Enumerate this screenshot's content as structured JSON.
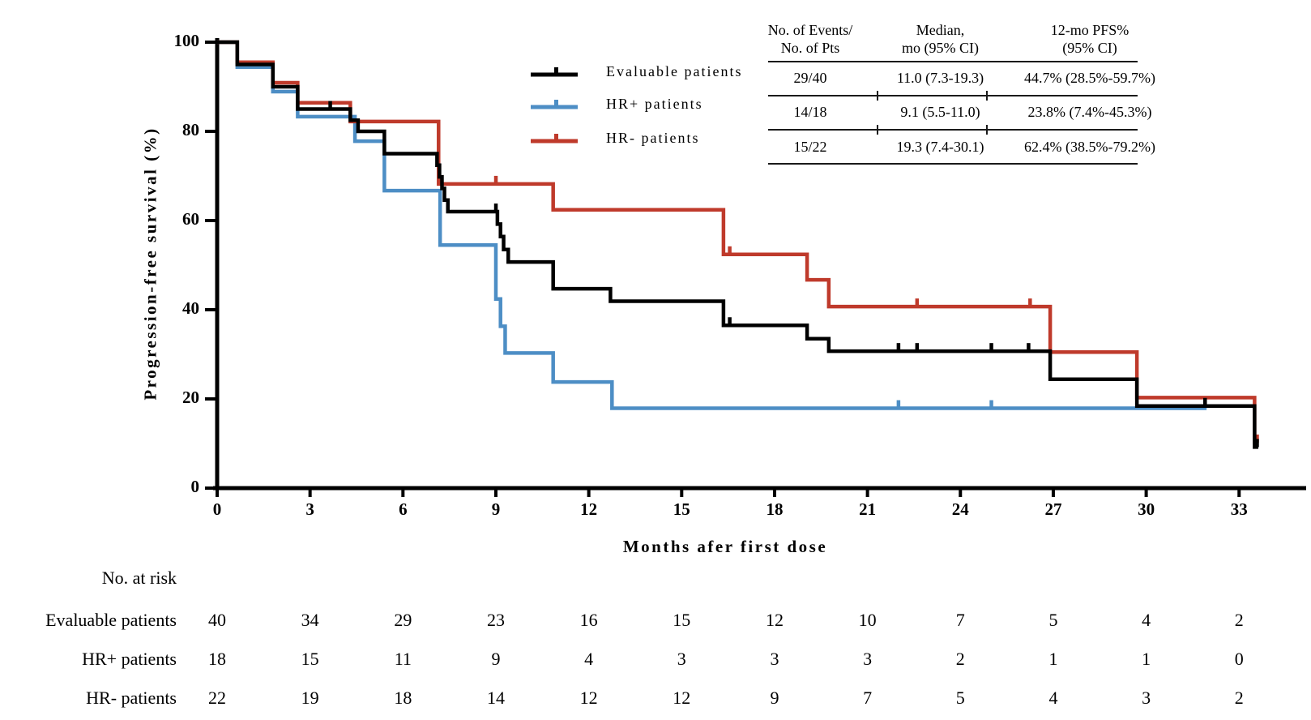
{
  "chart_data": {
    "type": "line",
    "subtype": "kaplan-meier-step",
    "title": "",
    "xlabel": "Months afer first dose",
    "ylabel": "Progression-free survival (%)",
    "xlim": [
      0,
      35.2
    ],
    "ylim": [
      0,
      100
    ],
    "xticks": [
      0,
      3,
      6,
      9,
      12,
      15,
      18,
      21,
      24,
      27,
      30,
      33
    ],
    "yticks": [
      0,
      20,
      40,
      60,
      80,
      100
    ],
    "grid": false,
    "legend_position": "upper-center-left-of-stats-table",
    "series": [
      {
        "name": "Evaluable patients",
        "color": "#000000",
        "start": [
          0,
          100
        ],
        "drops": [
          [
            0.65,
            95
          ],
          [
            1.8,
            90
          ],
          [
            2.6,
            85
          ],
          [
            4.3,
            82.5
          ],
          [
            4.55,
            80
          ],
          [
            5.4,
            75
          ],
          [
            7.1,
            72.4
          ],
          [
            7.18,
            69.8
          ],
          [
            7.26,
            67.2
          ],
          [
            7.34,
            64.6
          ],
          [
            7.45,
            62
          ],
          [
            9.05,
            59.2
          ],
          [
            9.15,
            56.4
          ],
          [
            9.25,
            53.5
          ],
          [
            9.4,
            50.7
          ],
          [
            10.85,
            44.7
          ],
          [
            12.7,
            41.9
          ],
          [
            16.35,
            36.5
          ],
          [
            19.05,
            33.5
          ],
          [
            19.75,
            30.7
          ],
          [
            26.9,
            24.4
          ],
          [
            29.7,
            18.4
          ],
          [
            33.5,
            9.2
          ]
        ],
        "end_month": 33.62,
        "censors": [
          [
            3.65,
            85
          ],
          [
            9.0,
            62
          ],
          [
            16.55,
            36.5
          ],
          [
            22.0,
            30.7
          ],
          [
            22.6,
            30.7
          ],
          [
            25.0,
            30.7
          ],
          [
            26.2,
            30.7
          ],
          [
            31.9,
            18.4
          ],
          [
            33.58,
            9.2
          ]
        ]
      },
      {
        "name": "HR+ patients",
        "color": "#4d8ec5",
        "start": [
          0,
          100
        ],
        "drops": [
          [
            0.65,
            94.4
          ],
          [
            1.8,
            88.9
          ],
          [
            2.6,
            83.3
          ],
          [
            4.45,
            77.8
          ],
          [
            5.4,
            66.7
          ],
          [
            7.2,
            54.5
          ],
          [
            9.0,
            42.4
          ],
          [
            9.15,
            36.3
          ],
          [
            9.3,
            30.3
          ],
          [
            10.85,
            23.8
          ],
          [
            12.75,
            17.9
          ]
        ],
        "end_month": 31.95,
        "censors": [
          [
            22.0,
            17.9
          ],
          [
            25.0,
            17.9
          ],
          [
            31.9,
            17.9
          ]
        ]
      },
      {
        "name": "HR- patients",
        "color": "#bf3a2b",
        "start": [
          0,
          100
        ],
        "drops": [
          [
            0.65,
            95.5
          ],
          [
            1.8,
            90.9
          ],
          [
            2.6,
            86.4
          ],
          [
            4.3,
            82.2
          ],
          [
            7.15,
            68.2
          ],
          [
            10.85,
            62.4
          ],
          [
            16.35,
            52.4
          ],
          [
            19.05,
            46.7
          ],
          [
            19.75,
            40.7
          ],
          [
            26.9,
            30.5
          ],
          [
            29.7,
            20.3
          ],
          [
            33.5,
            10.2
          ]
        ],
        "end_month": 33.62,
        "censors": [
          [
            9.0,
            68.2
          ],
          [
            16.55,
            52.4
          ],
          [
            22.6,
            40.7
          ],
          [
            26.25,
            40.7
          ],
          [
            33.58,
            10.2
          ]
        ]
      }
    ]
  },
  "stats_table": {
    "columns": [
      {
        "line1": "No. of Events/",
        "line2": "No. of Pts"
      },
      {
        "line1": "Median,",
        "line2": "mo (95% CI)"
      },
      {
        "line1": "12-mo PFS%",
        "line2": "(95% CI)"
      }
    ],
    "rows": [
      [
        "29/40",
        "11.0 (7.3-19.3)",
        "44.7% (28.5%-59.7%)"
      ],
      [
        "14/18",
        "9.1 (5.5-11.0)",
        "23.8% (7.4%-45.3%)"
      ],
      [
        "15/22",
        "19.3 (7.4-30.1)",
        "62.4% (38.5%-79.2%)"
      ]
    ]
  },
  "risk_table": {
    "header": "No. at risk",
    "timepoints": [
      0,
      3,
      6,
      9,
      12,
      15,
      18,
      21,
      24,
      27,
      30,
      33
    ],
    "rows": [
      {
        "label": "Evaluable patients",
        "counts": [
          40,
          34,
          29,
          23,
          16,
          15,
          12,
          10,
          7,
          5,
          4,
          2
        ]
      },
      {
        "label": "HR+ patients",
        "counts": [
          18,
          15,
          11,
          9,
          4,
          3,
          3,
          3,
          2,
          1,
          1,
          0
        ]
      },
      {
        "label": "HR- patients",
        "counts": [
          22,
          19,
          18,
          14,
          12,
          12,
          9,
          7,
          5,
          4,
          3,
          2
        ]
      }
    ]
  }
}
